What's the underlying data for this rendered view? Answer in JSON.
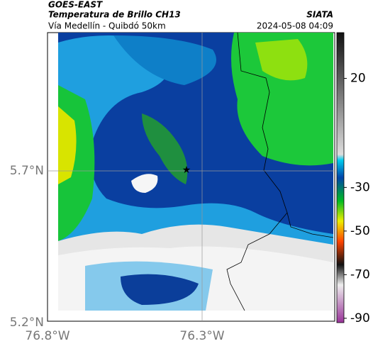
{
  "header": {
    "satellite": "GOES-EAST",
    "product": "Temperatura de Brillo CH13",
    "region": "Vía Medellín - Quibdó 50km",
    "source": "SIATA",
    "timestamp": "2024-05-08 04:09"
  },
  "map": {
    "lat_labels": [
      "5.7°N",
      "5.2°N"
    ],
    "lon_labels": [
      "76.8°W",
      "76.3°W"
    ]
  },
  "colorbar": {
    "clim": [
      -92,
      41
    ],
    "ticks": [
      20,
      -30,
      -50,
      -70,
      -90
    ]
  }
}
